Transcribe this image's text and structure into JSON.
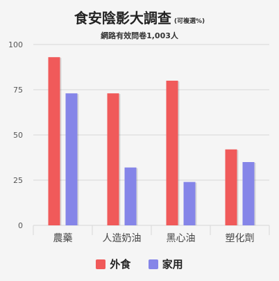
{
  "header": {
    "title": "食安陰影大調查",
    "title_note": "(可複選%)",
    "subtitle": "網路有效問卷1,003人"
  },
  "colors": {
    "outside": "#f05a5a",
    "home": "#8585e8",
    "grid": "#d8d8d8",
    "axis_text": "#555555"
  },
  "chart_data": {
    "type": "bar",
    "title": "食安陰影大調查",
    "subtitle": "網路有效問卷1,003人",
    "categories": [
      "農藥",
      "人造奶油",
      "黑心油",
      "塑化劑"
    ],
    "series": [
      {
        "name": "外食",
        "values": [
          93,
          73,
          80,
          42
        ]
      },
      {
        "name": "家用",
        "values": [
          73,
          32,
          24,
          35
        ]
      }
    ],
    "y_ticks": [
      0,
      25,
      50,
      75,
      100
    ],
    "ylim": [
      0,
      100
    ],
    "xlabel": "",
    "ylabel": "",
    "grid": true,
    "legend_position": "bottom-center"
  },
  "legend": [
    {
      "label": "外食"
    },
    {
      "label": "家用"
    }
  ]
}
